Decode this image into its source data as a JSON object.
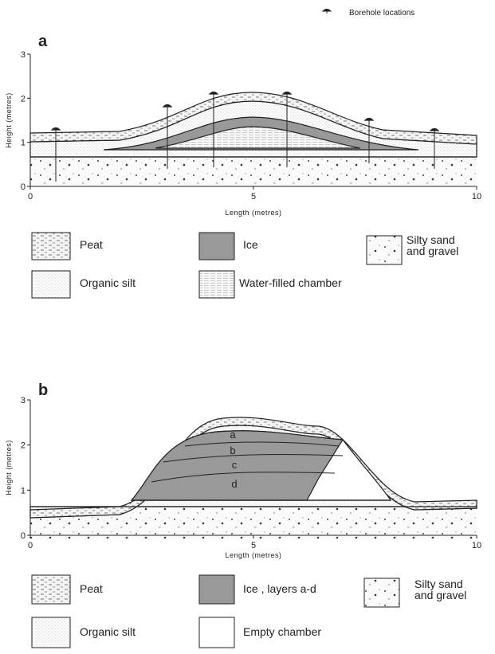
{
  "top_legend": {
    "label": "Borehole locations"
  },
  "panels": [
    {
      "label": "a",
      "y_axis_label": "Height (metres)",
      "x_axis_label": "Length (metres)",
      "xlim": [
        0,
        10
      ],
      "ylim": [
        0,
        3
      ],
      "xticks": [
        0,
        5,
        10
      ],
      "yticks": [
        0,
        1,
        2,
        3
      ],
      "legend": [
        {
          "label": [
            "Peat"
          ]
        },
        {
          "label": [
            "Ice"
          ]
        },
        {
          "label": [
            "Silty sand",
            "and gravel"
          ]
        },
        {
          "label": [
            "Organic silt"
          ]
        },
        {
          "label": [
            "Water-filled chamber"
          ]
        }
      ]
    },
    {
      "label": "b",
      "y_axis_label": "Height (metres)",
      "x_axis_label": "Length (metres)",
      "xlim": [
        0,
        10
      ],
      "ylim": [
        0,
        3
      ],
      "xticks": [
        0,
        5,
        10
      ],
      "yticks": [
        0,
        1,
        2,
        3
      ],
      "layer_labels": [
        "a",
        "b",
        "c",
        "d"
      ],
      "legend": [
        {
          "label": [
            "Peat"
          ]
        },
        {
          "label": [
            "Ice , layers a-d"
          ]
        },
        {
          "label": [
            "Silty sand",
            "and gravel"
          ]
        },
        {
          "label": [
            "Organic silt"
          ]
        },
        {
          "label": [
            "Empty chamber"
          ]
        }
      ]
    }
  ]
}
